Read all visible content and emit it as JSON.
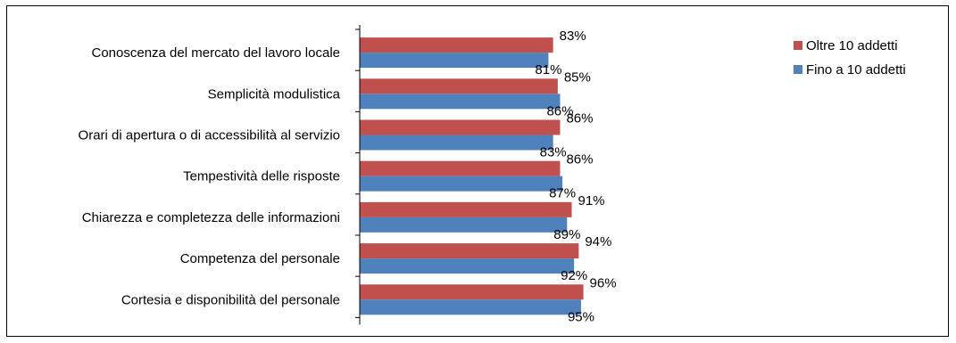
{
  "chart_data": {
    "type": "bar",
    "orientation": "horizontal",
    "categories": [
      "Conoscenza del mercato del lavoro locale",
      "Semplicità modulistica",
      "Orari di apertura o di accessibilità al servizio",
      "Tempestività delle risposte",
      "Chiarezza e completezza delle informazioni",
      "Competenza del personale",
      "Cortesia e disponibilità del personale"
    ],
    "series": [
      {
        "name": "Oltre 10 addetti",
        "color": "#C0504D",
        "values": [
          83,
          85,
          86,
          86,
          91,
          94,
          96
        ],
        "labels": [
          "83%",
          "85%",
          "86%",
          "86%",
          "91%",
          "94%",
          "96%"
        ]
      },
      {
        "name": "Fino a 10 addetti",
        "color": "#4F81BD",
        "values": [
          81,
          86,
          83,
          87,
          89,
          92,
          95
        ],
        "labels": [
          "81%",
          "86%",
          "83%",
          "87%",
          "89%",
          "92%",
          "95%"
        ]
      }
    ],
    "xlim": [
      0,
      100
    ],
    "value_unit": "%",
    "grid": false,
    "legend_position": "top-right",
    "title": "",
    "xlabel": "",
    "ylabel": ""
  }
}
